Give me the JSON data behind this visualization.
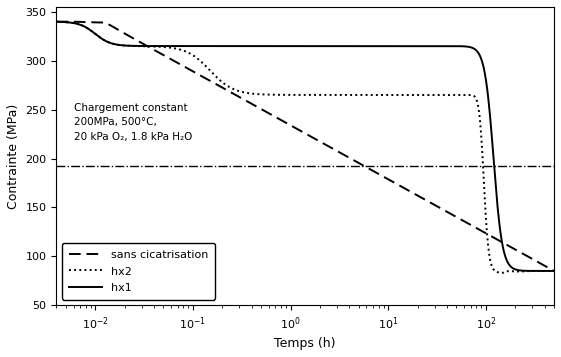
{
  "title": "",
  "xlabel": "Temps (h)",
  "ylabel": "Contrainte (MPa)",
  "xlim": [
    0.004,
    500
  ],
  "ylim": [
    50,
    355
  ],
  "yticks": [
    50,
    100,
    150,
    200,
    250,
    300,
    350
  ],
  "annotation_line1": "Chargement constant",
  "annotation_line2": "200MPa, 500°C,",
  "annotation_line3": "20 kPa O₂, 1.8 kPa H₂O",
  "const_load_y": 192,
  "legend_labels": [
    "hx1",
    "hx2",
    "sans cicatrisation"
  ],
  "bg_color": "#ffffff",
  "line_color": "#000000"
}
